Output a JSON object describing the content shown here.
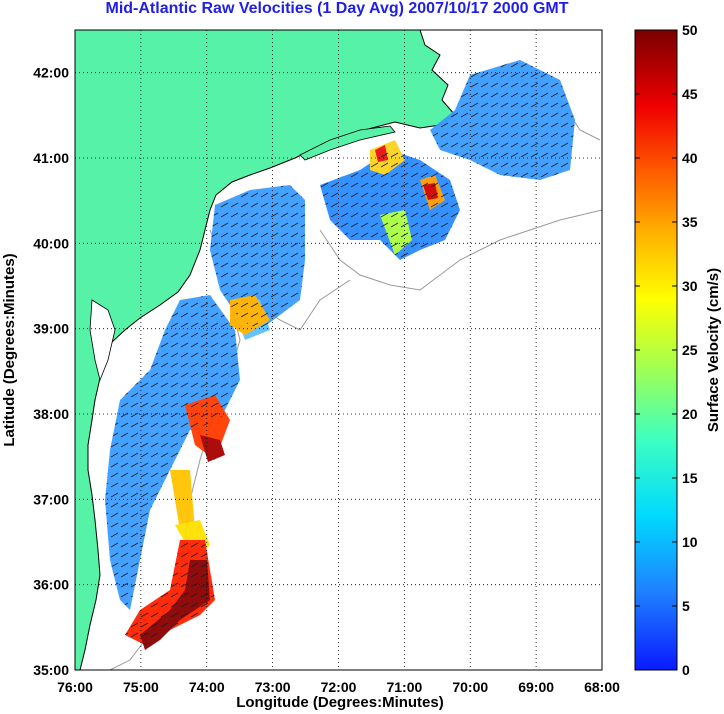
{
  "title": "Mid-Atlantic Raw Velocities (1 Day Avg) 2007/10/17 2000 GMT",
  "map": {
    "xlabel": "Longitude (Degrees:Minutes)",
    "ylabel": "Latitude (Degrees:Minutes)",
    "xticks": [
      "76:00",
      "75:00",
      "74:00",
      "73:00",
      "72:00",
      "71:00",
      "70:00",
      "69:00",
      "68:00"
    ],
    "yticks": [
      "42:00",
      "41:00",
      "40:00",
      "39:00",
      "38:00",
      "37:00",
      "36:00",
      "35:00"
    ],
    "lon_range": [
      -76,
      -68
    ],
    "lat_range": [
      35,
      42.5
    ],
    "grid": "dotted",
    "land_color": "#55f2a8",
    "ocean_color": "#ffffff"
  },
  "colorbar": {
    "label": "Surface Velocity (cm/s)",
    "ticks": [
      "50",
      "45",
      "40",
      "35",
      "30",
      "25",
      "20",
      "15",
      "10",
      "5",
      "0"
    ],
    "range": [
      0,
      50
    ],
    "colormap": "jet"
  }
}
